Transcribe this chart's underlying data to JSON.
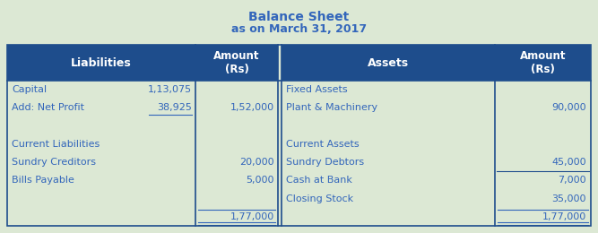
{
  "title_line1": "Balance Sheet",
  "title_line2": "as on March 31, 2017",
  "title_color": "#3366bb",
  "bg_color": "#dce8d4",
  "header_bg": "#1e4d8c",
  "header_text_color": "#ffffff",
  "cell_text_color": "#3366bb",
  "border_color": "#1e4d8c",
  "liabilities_rows": [
    {
      "label": "Capital",
      "sub_val": "1,13,075",
      "main_val": "",
      "underline_sub": false,
      "total": false
    },
    {
      "label": "Add: Net Profit",
      "sub_val": "38,925",
      "main_val": "1,52,000",
      "underline_sub": true,
      "total": false
    },
    {
      "label": "",
      "sub_val": "",
      "main_val": "",
      "underline_sub": false,
      "total": false
    },
    {
      "label": "Current Liabilities",
      "sub_val": "",
      "main_val": "",
      "underline_sub": false,
      "total": false
    },
    {
      "label": "Sundry Creditors",
      "sub_val": "",
      "main_val": "20,000",
      "underline_sub": false,
      "total": false
    },
    {
      "label": "Bills Payable",
      "sub_val": "",
      "main_val": "5,000",
      "underline_sub": false,
      "total": false
    },
    {
      "label": "",
      "sub_val": "",
      "main_val": "",
      "underline_sub": false,
      "total": false
    },
    {
      "label": "",
      "sub_val": "",
      "main_val": "1,77,000",
      "underline_sub": false,
      "total": true
    }
  ],
  "assets_rows": [
    {
      "label": "Fixed Assets",
      "main_val": "",
      "total": false
    },
    {
      "label": "Plant & Machinery",
      "main_val": "90,000",
      "total": false
    },
    {
      "label": "",
      "main_val": "",
      "total": false
    },
    {
      "label": "Current Assets",
      "main_val": "",
      "total": false
    },
    {
      "label": "Sundry Debtors",
      "main_val": "45,000",
      "total": false,
      "line_below": true
    },
    {
      "label": "Cash at Bank",
      "main_val": "7,000",
      "total": false
    },
    {
      "label": "Closing Stock",
      "main_val": "35,000",
      "total": false
    },
    {
      "label": "",
      "main_val": "1,77,000",
      "total": true
    }
  ]
}
